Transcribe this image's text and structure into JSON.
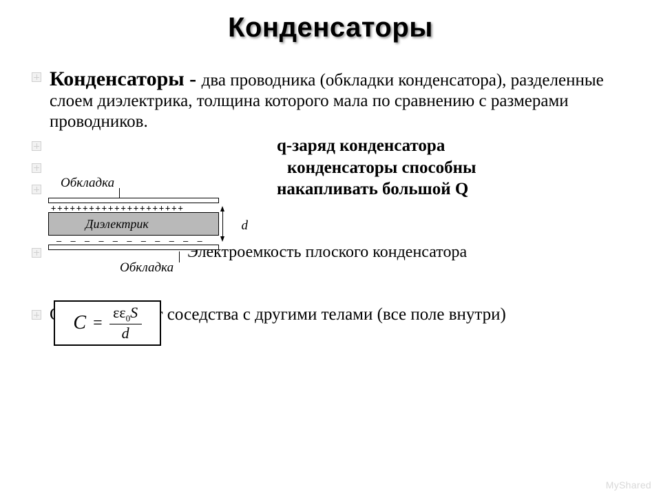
{
  "title": "Конденсаторы",
  "defn_lead": "Конденсаторы - ",
  "defn_rest": "два проводника (обкладки конденсатора), разделенные слоем диэлектрика, толщина которого мала по сравнению с размерами проводников.",
  "line_q": "q-заряд конденсатора",
  "line_cap1": "конденсаторы способны",
  "line_cap2": "накапливать большой Q",
  "line_el": "Электроемкость плоского конденсатора",
  "line_c": "С не зависит от соседства с другими телами (все поле внутри)",
  "diagram": {
    "label_top": "Обкладка",
    "label_mid": "Диэлектрик",
    "label_bottom": "Обкладка",
    "label_d": "d",
    "plus_row": "+++++++++++++++++++++",
    "dash_row": "— — — — — — — — — — —",
    "colors": {
      "line": "#000000",
      "dielectric_fill": "#b9b9b9",
      "background": "#ffffff"
    }
  },
  "formula": {
    "C": "C",
    "eq": "=",
    "num_eps": "ε",
    "num_eps0": "ε",
    "num_eps0_sub": "0",
    "num_S": "S",
    "den": "d"
  },
  "watermark": "MyShared",
  "style": {
    "title_fontsize": 40,
    "title_shadow": "2px 2px 3px rgba(80,80,80,0.6)",
    "body_fontsize": 25,
    "lead_fontsize": 30,
    "bullet_color": "#cfcfcf",
    "background": "#ffffff",
    "text_color": "#000000"
  }
}
